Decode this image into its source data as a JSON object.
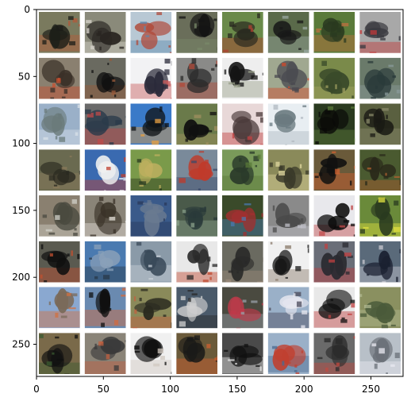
{
  "figure": {
    "x_ticks": [
      "0",
      "50",
      "100",
      "150",
      "200",
      "250"
    ],
    "y_ticks": [
      "0",
      "50",
      "100",
      "150",
      "200",
      "250"
    ],
    "x_tick_values": [
      0,
      50,
      100,
      150,
      200,
      250
    ],
    "y_tick_values": [
      0,
      50,
      100,
      150,
      200,
      250
    ],
    "image_extent": [
      274,
      274
    ],
    "grid": {
      "rows": 8,
      "cols": 8,
      "separator_color": "#ffffff"
    }
  },
  "tiles": [
    {
      "bg": "#7a7a5e",
      "blob": "#1c1e18",
      "accent": "#b35a3a"
    },
    {
      "bg": "#8a8a7a",
      "blob": "#2a2622",
      "accent": "#d8d4cc"
    },
    {
      "bg": "#b8c8d4",
      "blob": "#b04a3a",
      "accent": "#5a8ab0"
    },
    {
      "bg": "#6a6e5a",
      "blob": "#141414",
      "accent": "#7a8a6a"
    },
    {
      "bg": "#6a8a4a",
      "blob": "#2a2a20",
      "accent": "#b04030"
    },
    {
      "bg": "#5a6a4a",
      "blob": "#181818",
      "accent": "#9aa8a0"
    },
    {
      "bg": "#5a7a3a",
      "blob": "#2a3a20",
      "accent": "#c07040"
    },
    {
      "bg": "#a8a8a8",
      "blob": "#3a3a40",
      "accent": "#c03a3a"
    },
    {
      "bg": "#8a8070",
      "blob": "#3a3028",
      "accent": "#c85030"
    },
    {
      "bg": "#6a6a60",
      "blob": "#101010",
      "accent": "#9a5a3a"
    },
    {
      "bg": "#f2f2f4",
      "blob": "#2a2a3a",
      "accent": "#c85a5a"
    },
    {
      "bg": "#8a8a88",
      "blob": "#2a2a2a",
      "accent": "#b04a3a"
    },
    {
      "bg": "#eeeeee",
      "blob": "#141414",
      "accent": "#9aa08a"
    },
    {
      "bg": "#a0a890",
      "blob": "#4a4a50",
      "accent": "#d04a2a"
    },
    {
      "bg": "#7a8a4a",
      "blob": "#3a4a2a",
      "accent": "#a0a060"
    },
    {
      "bg": "#6a7a6a",
      "blob": "#2a3a3a",
      "accent": "#8a9a9a"
    },
    {
      "bg": "#9ab0c8",
      "blob": "#6a7a7a",
      "accent": "#d8e0e8"
    },
    {
      "bg": "#6a6a6a",
      "blob": "#2a3a4a",
      "accent": "#c04a4a"
    },
    {
      "bg": "#3a7ac8",
      "blob": "#101418",
      "accent": "#e8a040"
    },
    {
      "bg": "#6a7a4a",
      "blob": "#101010",
      "accent": "#a09060"
    },
    {
      "bg": "#e8d8d8",
      "blob": "#4a3a3a",
      "accent": "#c04040"
    },
    {
      "bg": "#e8eef2",
      "blob": "#6a7a80",
      "accent": "#b0b8c0"
    },
    {
      "bg": "#2a3a20",
      "blob": "#0a0a08",
      "accent": "#5a7a3a"
    },
    {
      "bg": "#5a6040",
      "blob": "#1a1a14",
      "accent": "#8a8a6a"
    },
    {
      "bg": "#6a6a50",
      "blob": "#2a2a20",
      "accent": "#8a7a5a"
    },
    {
      "bg": "#3a6ab0",
      "blob": "#f0f0f0",
      "accent": "#c04030"
    },
    {
      "bg": "#7a9a4a",
      "blob": "#c0b060",
      "accent": "#2a3a20"
    },
    {
      "bg": "#7a8a9a",
      "blob": "#c03a2a",
      "accent": "#3a4a6a"
    },
    {
      "bg": "#7a9a5a",
      "blob": "#2a3a2a",
      "accent": "#5a7a3a"
    },
    {
      "bg": "#8a8a5a",
      "blob": "#3a3a2a",
      "accent": "#e0d8a0"
    },
    {
      "bg": "#6a5a3a",
      "blob": "#101010",
      "accent": "#d06030"
    },
    {
      "bg": "#4a5a30",
      "blob": "#2a2a1a",
      "accent": "#b06030"
    },
    {
      "bg": "#8a8070",
      "blob": "#4a4a40",
      "accent": "#d0d0c8"
    },
    {
      "bg": "#8a8478",
      "blob": "#3a3228",
      "accent": "#e0dcd4"
    },
    {
      "bg": "#3a5a8a",
      "blob": "#6a7a90",
      "accent": "#2a3a5a"
    },
    {
      "bg": "#4a5a4a",
      "blob": "#2a3a3a",
      "accent": "#8aa08a"
    },
    {
      "bg": "#3a4a2a",
      "blob": "#a03030",
      "accent": "#4a7ab0"
    },
    {
      "bg": "#8a8a8a",
      "blob": "#4a4a4a",
      "accent": "#c0c0c8"
    },
    {
      "bg": "#e8e8ec",
      "blob": "#0a0a0a",
      "accent": "#c04a4a"
    },
    {
      "bg": "#6a8a3a",
      "blob": "#2a3a20",
      "accent": "#e0e040"
    },
    {
      "bg": "#5a5a50",
      "blob": "#101010",
      "accent": "#c05030"
    },
    {
      "bg": "#4a7ab0",
      "blob": "#8aa0b8",
      "accent": "#2a3a4a"
    },
    {
      "bg": "#8a9aa8",
      "blob": "#3a4a5a",
      "accent": "#c8d0d8"
    },
    {
      "bg": "#e8e8e8",
      "blob": "#2a2a2a",
      "accent": "#c04a30"
    },
    {
      "bg": "#6a6a60",
      "blob": "#2a2a28",
      "accent": "#9a8a7a"
    },
    {
      "bg": "#f0f0f0",
      "blob": "#181818",
      "accent": "#8a7a6a"
    },
    {
      "bg": "#6a6e78",
      "blob": "#2a2a30",
      "accent": "#c04040"
    },
    {
      "bg": "#5a6a7a",
      "blob": "#1a2030",
      "accent": "#c8c8d0"
    },
    {
      "bg": "#8aa8d0",
      "blob": "#7a6a5a",
      "accent": "#d07040"
    },
    {
      "bg": "#6a8ab0",
      "blob": "#101010",
      "accent": "#d06a40"
    },
    {
      "bg": "#8a8a5a",
      "blob": "#2a2a20",
      "accent": "#c06040"
    },
    {
      "bg": "#4a5a6a",
      "blob": "#d0d0d0",
      "accent": "#2a2a2a"
    },
    {
      "bg": "#4a4a40",
      "blob": "#c03a4a",
      "accent": "#9aa0a8"
    },
    {
      "bg": "#9ab0c8",
      "blob": "#e8e8f0",
      "accent": "#4a4a5a"
    },
    {
      "bg": "#e8e8e8",
      "blob": "#101010",
      "accent": "#c04040"
    },
    {
      "bg": "#8a9060",
      "blob": "#4a5a3a",
      "accent": "#b0b890"
    },
    {
      "bg": "#7a6a4a",
      "blob": "#101010",
      "accent": "#3a5a30"
    },
    {
      "bg": "#8a8478",
      "blob": "#3a3a3a",
      "accent": "#c06040"
    },
    {
      "bg": "#f0f0f0",
      "blob": "#0a0a0a",
      "accent": "#d0c8c0"
    },
    {
      "bg": "#6a5a3a",
      "blob": "#1a1a18",
      "accent": "#d06030"
    },
    {
      "bg": "#4a4a4a",
      "blob": "#101010",
      "accent": "#e8e8e8"
    },
    {
      "bg": "#9ab0c8",
      "blob": "#c04030",
      "accent": "#4a6a90"
    },
    {
      "bg": "#6a6a6a",
      "blob": "#2a2a2a",
      "accent": "#c04a40"
    },
    {
      "bg": "#b8c0c8",
      "blob": "#6a7078",
      "accent": "#e8e8f0"
    }
  ]
}
